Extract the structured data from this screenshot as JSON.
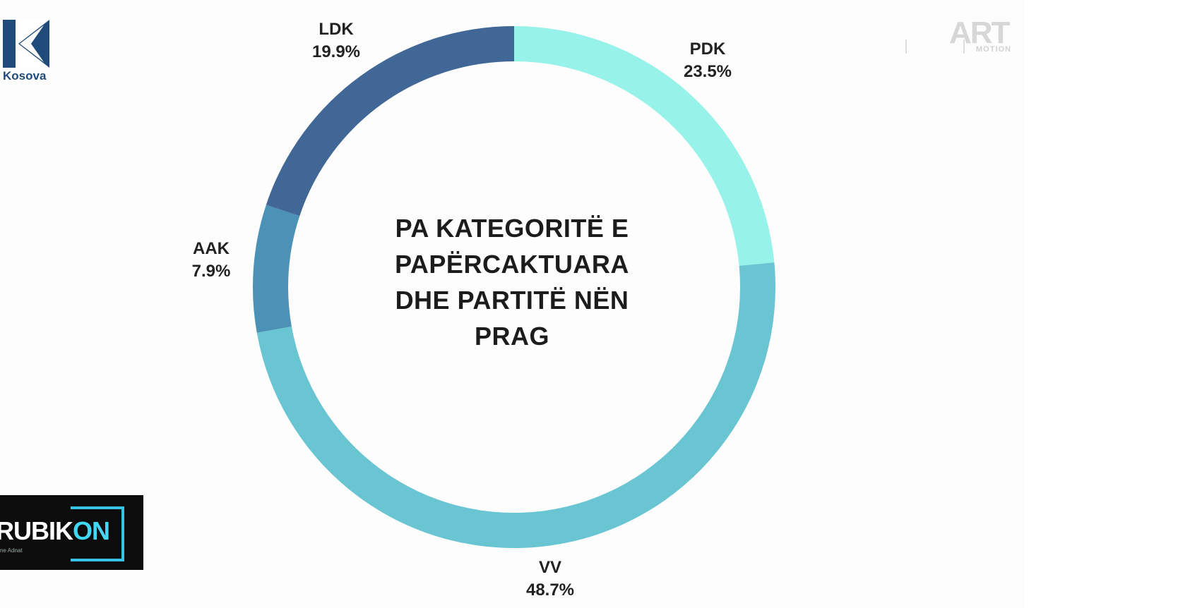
{
  "chart_data": {
    "type": "donut",
    "title": "PA KATEGORITË E PAPËRCAKTUARA DHE PARTITË NËN PRAG",
    "title_lines": [
      "PA KATEGORITË E",
      "PAPËRCAKTUARA",
      "DHE PARTITË NËN",
      "PRAG"
    ],
    "slices": [
      {
        "label": "PDK",
        "value": 23.5,
        "display": "23.5%",
        "color": "#97f2e9"
      },
      {
        "label": "VV",
        "value": 48.7,
        "display": "48.7%",
        "color": "#6ac5d3"
      },
      {
        "label": "AAK",
        "value": 7.9,
        "display": "7.9%",
        "color": "#4c92b6"
      },
      {
        "label": "LDK",
        "value": 19.9,
        "display": "19.9%",
        "color": "#406795"
      }
    ]
  },
  "logos": {
    "kosova": {
      "text": "Kosova",
      "color": "#1f4c7a"
    },
    "art": {
      "big": "ART",
      "small": "MOTION"
    },
    "rubikon": {
      "word_a": "RUBIK",
      "word_b": "ON",
      "sub": "ne Adnat"
    }
  }
}
